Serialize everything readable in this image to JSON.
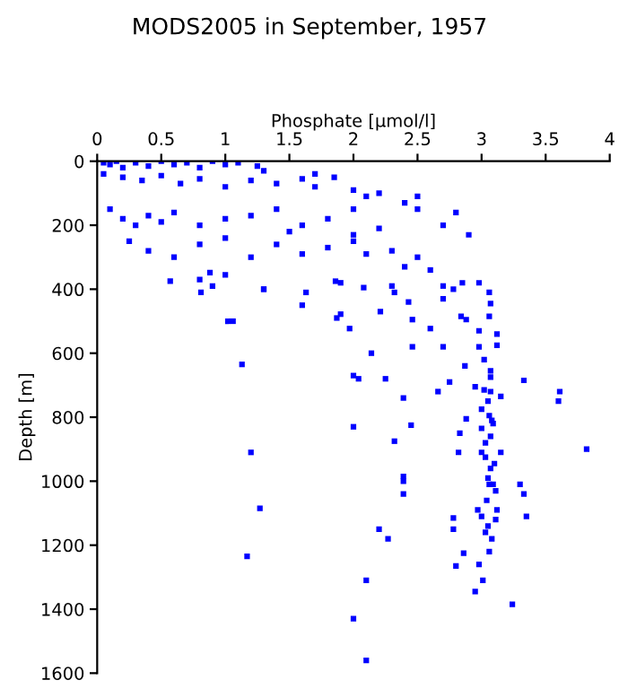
{
  "chart_data": {
    "type": "scatter",
    "title": "MODS2005 in September, 1957",
    "xlabel": "Phosphate [µmol/l]",
    "ylabel": "Depth [m]",
    "xlim": [
      0,
      4
    ],
    "xticks": [
      0,
      0.5,
      1,
      1.5,
      2,
      2.5,
      3,
      3.5,
      4
    ],
    "ylim": [
      1600,
      0
    ],
    "yticks": [
      0,
      200,
      400,
      600,
      800,
      1000,
      1200,
      1400,
      1600
    ],
    "grid": false,
    "legend": false,
    "marker": "square",
    "series": [
      {
        "color": "#0000ff",
        "x": [
          0.05,
          0.1,
          0.15,
          0.2,
          0.3,
          0.4,
          0.5,
          0.6,
          0.7,
          0.8,
          0.9,
          1.0,
          1.1,
          1.25,
          1.3,
          0.05,
          0.2,
          0.35,
          0.5,
          0.65,
          0.8,
          1.0,
          1.2,
          1.4,
          1.6,
          1.7,
          1.7,
          1.85,
          2.0,
          2.1,
          2.2,
          2.4,
          2.5,
          2.5,
          2.8,
          2.7,
          2.9,
          2.0,
          0.1,
          0.2,
          0.3,
          0.4,
          0.5,
          0.6,
          0.8,
          1.0,
          1.2,
          1.4,
          1.6,
          1.8,
          2.0,
          2.2,
          1.5,
          0.25,
          0.4,
          0.6,
          0.8,
          1.0,
          1.2,
          1.4,
          1.6,
          1.8,
          2.0,
          2.1,
          2.3,
          2.5,
          2.6,
          2.4,
          0.8,
          0.9,
          1.3,
          1.9,
          2.3,
          2.7,
          2.85,
          0.57,
          0.88,
          1.0,
          0.81,
          1.3,
          1.6,
          1.63,
          1.86,
          2.08,
          1.9,
          1.87,
          1.97,
          2.21,
          2.32,
          2.43,
          2.46,
          2.6,
          2.7,
          2.78,
          2.98,
          3.06,
          3.07,
          2.84,
          2.88,
          3.06,
          3.12,
          2.98,
          2.7,
          2.46,
          2.98,
          3.12,
          2.14,
          1.02,
          1.06,
          1.13,
          2.0,
          2.04,
          2.25,
          2.39,
          2.66,
          2.75,
          2.87,
          3.02,
          3.07,
          3.07,
          2.95,
          3.02,
          3.07,
          3.15,
          3.33,
          3.61,
          3.6,
          3.05,
          3.0,
          3.06,
          2.88,
          3.08,
          3.0,
          3.09,
          3.07,
          3.03,
          2.83,
          2.0,
          2.45,
          2.32,
          1.2,
          2.82,
          3.0,
          3.03,
          3.1,
          3.07,
          3.15,
          3.82,
          2.39,
          2.39,
          3.05,
          3.09,
          3.3,
          1.27,
          1.17,
          2.39,
          2.2,
          2.27,
          2.78,
          2.78,
          3.06,
          3.11,
          3.04,
          3.12,
          2.97,
          3.0,
          3.11,
          3.05,
          3.08,
          3.03,
          3.35,
          3.33,
          3.06,
          2.86,
          2.8,
          2.98,
          3.01,
          2.95,
          3.24,
          2.1,
          2.0,
          2.1
        ],
        "values": [
          5,
          10,
          0,
          20,
          5,
          15,
          0,
          10,
          5,
          20,
          0,
          10,
          5,
          15,
          30,
          40,
          50,
          60,
          45,
          70,
          55,
          80,
          60,
          70,
          55,
          80,
          40,
          50,
          90,
          110,
          100,
          130,
          110,
          150,
          160,
          200,
          230,
          150,
          150,
          180,
          200,
          170,
          190,
          160,
          200,
          180,
          170,
          150,
          200,
          180,
          230,
          210,
          220,
          250,
          280,
          300,
          260,
          240,
          300,
          260,
          290,
          270,
          250,
          290,
          280,
          300,
          340,
          330,
          370,
          390,
          400,
          380,
          390,
          390,
          380,
          375,
          348,
          355,
          410,
          400,
          450,
          410,
          375,
          395,
          478,
          490,
          523,
          470,
          410,
          440,
          495,
          523,
          430,
          400,
          380,
          410,
          445,
          485,
          495,
          485,
          540,
          530,
          580,
          580,
          580,
          575,
          600,
          500,
          500,
          635,
          670,
          680,
          680,
          740,
          720,
          690,
          640,
          620,
          655,
          675,
          705,
          715,
          720,
          735,
          685,
          720,
          750,
          750,
          775,
          795,
          805,
          810,
          835,
          820,
          860,
          880,
          850,
          830,
          825,
          875,
          910,
          910,
          910,
          925,
          945,
          960,
          910,
          900,
          985,
          1000,
          990,
          1010,
          1010,
          1085,
          1235,
          1040,
          1150,
          1180,
          1115,
          1150,
          1010,
          1030,
          1060,
          1090,
          1090,
          1110,
          1120,
          1140,
          1180,
          1160,
          1110,
          1040,
          1220,
          1225,
          1265,
          1260,
          1310,
          1345,
          1385,
          1310,
          1430,
          1560
        ]
      }
    ]
  }
}
